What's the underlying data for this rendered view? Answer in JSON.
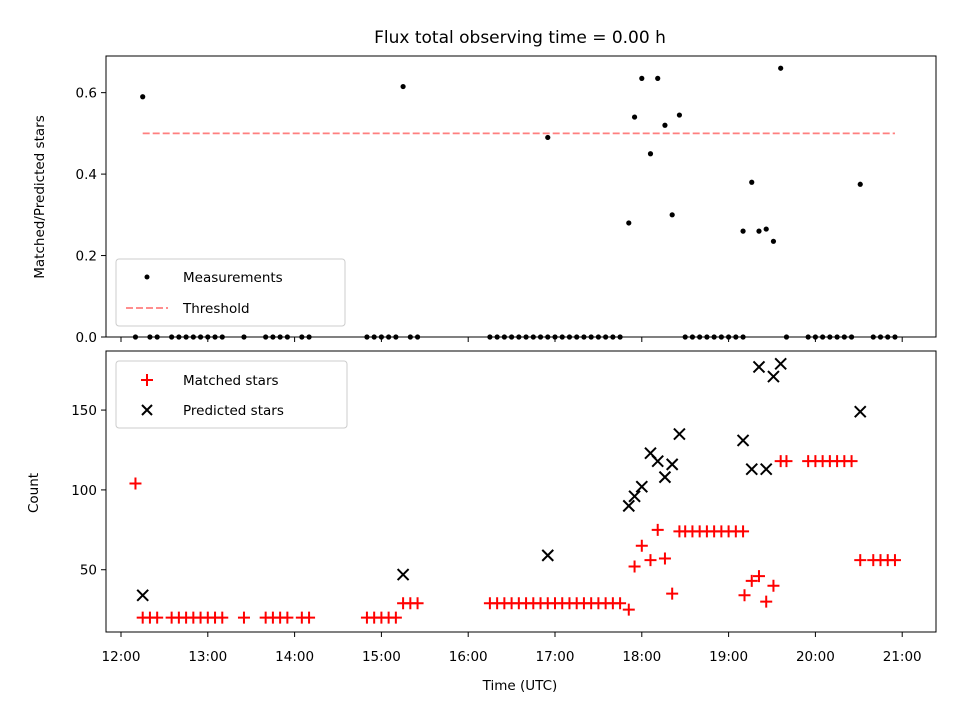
{
  "chart_data": [
    {
      "type": "scatter",
      "title": "Flux total observing time = 0.00 h",
      "xlabel": "",
      "ylabel": "Matched/Predicted stars",
      "xlim": [
        "12:00",
        "21:00"
      ],
      "ylim": [
        0,
        0.69
      ],
      "y_ticks": [
        "0.0",
        "0.2",
        "0.4",
        "0.6"
      ],
      "legend_position": "lower-left",
      "series": [
        {
          "name": "Measurements",
          "marker": "dot",
          "color": "#000000",
          "points": [
            [
              "12:15",
              0.59
            ],
            [
              "15:15",
              0.615
            ],
            [
              "16:55",
              0.49
            ],
            [
              "17:51",
              0.28
            ],
            [
              "17:55",
              0.54
            ],
            [
              "18:00",
              0.635
            ],
            [
              "18:06",
              0.45
            ],
            [
              "18:11",
              0.635
            ],
            [
              "18:16",
              0.52
            ],
            [
              "18:21",
              0.3
            ],
            [
              "18:26",
              0.545
            ],
            [
              "19:10",
              0.26
            ],
            [
              "19:16",
              0.38
            ],
            [
              "19:21",
              0.26
            ],
            [
              "19:26",
              0.265
            ],
            [
              "19:31",
              0.235
            ],
            [
              "19:36",
              0.66
            ],
            [
              "20:31",
              0.375
            ],
            [
              "12:10",
              0
            ],
            [
              "12:20",
              0
            ],
            [
              "12:25",
              0
            ],
            [
              "12:35",
              0
            ],
            [
              "12:40",
              0
            ],
            [
              "12:45",
              0
            ],
            [
              "12:50",
              0
            ],
            [
              "12:55",
              0
            ],
            [
              "13:00",
              0
            ],
            [
              "13:05",
              0
            ],
            [
              "13:10",
              0
            ],
            [
              "13:25",
              0
            ],
            [
              "13:40",
              0
            ],
            [
              "13:45",
              0
            ],
            [
              "13:50",
              0
            ],
            [
              "13:55",
              0
            ],
            [
              "14:05",
              0
            ],
            [
              "14:10",
              0
            ],
            [
              "14:50",
              0
            ],
            [
              "14:55",
              0
            ],
            [
              "15:00",
              0
            ],
            [
              "15:05",
              0
            ],
            [
              "15:10",
              0
            ],
            [
              "15:20",
              0
            ],
            [
              "15:25",
              0
            ],
            [
              "16:15",
              0
            ],
            [
              "16:20",
              0
            ],
            [
              "16:25",
              0
            ],
            [
              "16:30",
              0
            ],
            [
              "16:35",
              0
            ],
            [
              "16:40",
              0
            ],
            [
              "16:45",
              0
            ],
            [
              "16:50",
              0
            ],
            [
              "16:55",
              0
            ],
            [
              "17:00",
              0
            ],
            [
              "17:05",
              0
            ],
            [
              "17:10",
              0
            ],
            [
              "17:15",
              0
            ],
            [
              "17:20",
              0
            ],
            [
              "17:25",
              0
            ],
            [
              "17:30",
              0
            ],
            [
              "17:35",
              0
            ],
            [
              "17:40",
              0
            ],
            [
              "17:45",
              0
            ],
            [
              "18:30",
              0
            ],
            [
              "18:35",
              0
            ],
            [
              "18:40",
              0
            ],
            [
              "18:45",
              0
            ],
            [
              "18:50",
              0
            ],
            [
              "18:55",
              0
            ],
            [
              "19:00",
              0
            ],
            [
              "19:05",
              0
            ],
            [
              "19:10",
              0
            ],
            [
              "19:40",
              0
            ],
            [
              "19:55",
              0
            ],
            [
              "20:00",
              0
            ],
            [
              "20:05",
              0
            ],
            [
              "20:10",
              0
            ],
            [
              "20:15",
              0
            ],
            [
              "20:20",
              0
            ],
            [
              "20:25",
              0
            ],
            [
              "20:40",
              0
            ],
            [
              "20:45",
              0
            ],
            [
              "20:50",
              0
            ],
            [
              "20:55",
              0
            ]
          ]
        },
        {
          "name": "Threshold",
          "style": "dashed-line",
          "color": "#ff7f7f",
          "points": [
            [
              "12:15",
              0.5
            ],
            [
              "20:55",
              0.5
            ]
          ]
        }
      ]
    },
    {
      "type": "scatter",
      "title": "",
      "xlabel": "Time (UTC)",
      "ylabel": "Count",
      "xlim": [
        "12:00",
        "21:00"
      ],
      "ylim": [
        11,
        187
      ],
      "y_ticks": [
        "50",
        "100",
        "150"
      ],
      "x_ticks": [
        "12:00",
        "13:00",
        "14:00",
        "15:00",
        "16:00",
        "17:00",
        "18:00",
        "19:00",
        "20:00",
        "21:00"
      ],
      "legend_position": "upper-left",
      "series": [
        {
          "name": "Matched stars",
          "marker": "plus",
          "color": "#ff0000",
          "points": [
            [
              "12:10",
              104
            ],
            [
              "12:15",
              20
            ],
            [
              "12:20",
              20
            ],
            [
              "12:25",
              20
            ],
            [
              "12:35",
              20
            ],
            [
              "12:40",
              20
            ],
            [
              "12:45",
              20
            ],
            [
              "12:50",
              20
            ],
            [
              "12:55",
              20
            ],
            [
              "13:00",
              20
            ],
            [
              "13:05",
              20
            ],
            [
              "13:10",
              20
            ],
            [
              "13:25",
              20
            ],
            [
              "13:40",
              20
            ],
            [
              "13:45",
              20
            ],
            [
              "13:50",
              20
            ],
            [
              "13:55",
              20
            ],
            [
              "14:05",
              20
            ],
            [
              "14:10",
              20
            ],
            [
              "14:50",
              20
            ],
            [
              "14:55",
              20
            ],
            [
              "15:00",
              20
            ],
            [
              "15:05",
              20
            ],
            [
              "15:10",
              20
            ],
            [
              "15:15",
              29
            ],
            [
              "15:20",
              29
            ],
            [
              "15:25",
              29
            ],
            [
              "16:15",
              29
            ],
            [
              "16:20",
              29
            ],
            [
              "16:25",
              29
            ],
            [
              "16:30",
              29
            ],
            [
              "16:35",
              29
            ],
            [
              "16:40",
              29
            ],
            [
              "16:45",
              29
            ],
            [
              "16:50",
              29
            ],
            [
              "16:55",
              29
            ],
            [
              "17:00",
              29
            ],
            [
              "17:05",
              29
            ],
            [
              "17:10",
              29
            ],
            [
              "17:15",
              29
            ],
            [
              "17:20",
              29
            ],
            [
              "17:25",
              29
            ],
            [
              "17:30",
              29
            ],
            [
              "17:35",
              29
            ],
            [
              "17:40",
              29
            ],
            [
              "17:45",
              29
            ],
            [
              "17:51",
              25
            ],
            [
              "17:55",
              52
            ],
            [
              "18:00",
              65
            ],
            [
              "18:06",
              56
            ],
            [
              "18:11",
              75
            ],
            [
              "18:16",
              57
            ],
            [
              "18:21",
              35
            ],
            [
              "18:26",
              74
            ],
            [
              "18:30",
              74
            ],
            [
              "18:35",
              74
            ],
            [
              "18:40",
              74
            ],
            [
              "18:45",
              74
            ],
            [
              "18:50",
              74
            ],
            [
              "18:55",
              74
            ],
            [
              "19:00",
              74
            ],
            [
              "19:05",
              74
            ],
            [
              "19:10",
              74
            ],
            [
              "19:11",
              34
            ],
            [
              "19:16",
              43
            ],
            [
              "19:21",
              46
            ],
            [
              "19:26",
              30
            ],
            [
              "19:31",
              40
            ],
            [
              "19:36",
              118
            ],
            [
              "19:40",
              118
            ],
            [
              "19:55",
              118
            ],
            [
              "20:00",
              118
            ],
            [
              "20:05",
              118
            ],
            [
              "20:10",
              118
            ],
            [
              "20:15",
              118
            ],
            [
              "20:20",
              118
            ],
            [
              "20:25",
              118
            ],
            [
              "20:31",
              56
            ],
            [
              "20:40",
              56
            ],
            [
              "20:45",
              56
            ],
            [
              "20:50",
              56
            ],
            [
              "20:55",
              56
            ]
          ]
        },
        {
          "name": "Predicted stars",
          "marker": "x",
          "color": "#000000",
          "points": [
            [
              "12:15",
              34
            ],
            [
              "15:15",
              47
            ],
            [
              "16:55",
              59
            ],
            [
              "17:51",
              90
            ],
            [
              "17:55",
              96
            ],
            [
              "18:00",
              102
            ],
            [
              "18:06",
              123
            ],
            [
              "18:11",
              118
            ],
            [
              "18:16",
              108
            ],
            [
              "18:21",
              116
            ],
            [
              "18:26",
              135
            ],
            [
              "19:10",
              131
            ],
            [
              "19:16",
              113
            ],
            [
              "19:21",
              177
            ],
            [
              "19:26",
              113
            ],
            [
              "19:31",
              171
            ],
            [
              "19:36",
              179
            ],
            [
              "20:31",
              149
            ]
          ]
        }
      ]
    }
  ]
}
